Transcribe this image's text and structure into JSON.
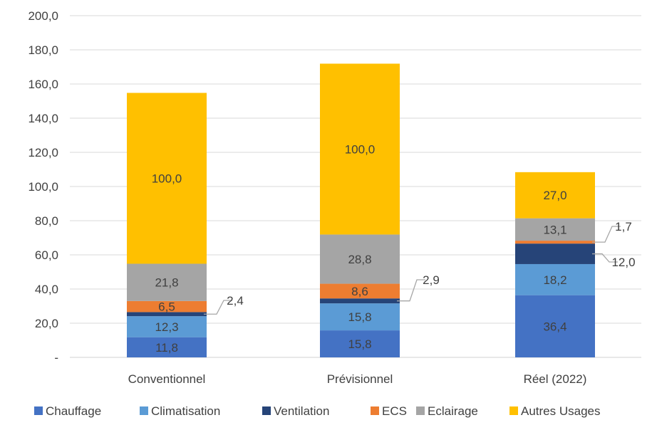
{
  "chart_data": {
    "type": "bar",
    "stacked": true,
    "categories": [
      "Conventionnel",
      "Prévisionnel",
      "Réel (2022)"
    ],
    "ylim": [
      0,
      200
    ],
    "yticks": [
      "-",
      "20,0",
      "40,0",
      "60,0",
      "80,0",
      "100,0",
      "120,0",
      "140,0",
      "160,0",
      "180,0",
      "200,0"
    ],
    "grid": true,
    "legend_position": "bottom",
    "series": [
      {
        "name": "Chauffage",
        "color": "#4472C4",
        "values": [
          11.8,
          15.8,
          36.4
        ],
        "labels": [
          "11,8",
          "15,8",
          "36,4"
        ]
      },
      {
        "name": "Climatisation",
        "color": "#5B9BD5",
        "values": [
          12.3,
          15.8,
          18.2
        ],
        "labels": [
          "12,3",
          "15,8",
          "18,2"
        ]
      },
      {
        "name": "Ventilation",
        "color": "#264478",
        "values": [
          2.4,
          2.9,
          12.0
        ],
        "labels": [
          "2,4",
          "2,9",
          "12,0"
        ]
      },
      {
        "name": "ECS",
        "color": "#ED7D31",
        "values": [
          6.5,
          8.6,
          1.7
        ],
        "labels": [
          "6,5",
          "8,6",
          "1,7"
        ]
      },
      {
        "name": "Eclairage",
        "color": "#A5A5A5",
        "values": [
          21.8,
          28.8,
          13.1
        ],
        "labels": [
          "21,8",
          "28,8",
          "13,1"
        ]
      },
      {
        "name": "Autres Usages",
        "color": "#FFC000",
        "values": [
          100.0,
          100.0,
          27.0
        ],
        "labels": [
          "100,0",
          "100,0",
          "27,0"
        ]
      }
    ]
  }
}
